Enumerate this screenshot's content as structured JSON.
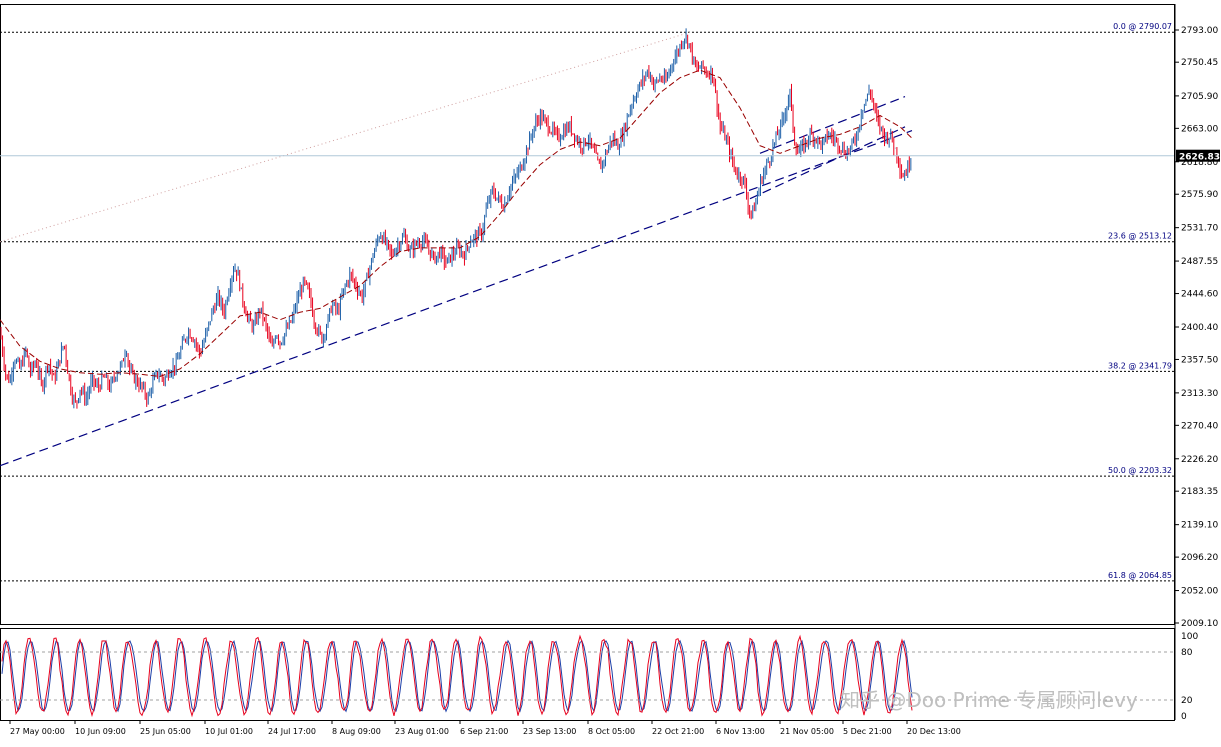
{
  "chart_data": {
    "type": "candlestick",
    "y_ticks": [
      "2793.00",
      "2750.45",
      "2705.90",
      "2663.00",
      "2618.80",
      "2575.90",
      "2531.70",
      "2487.55",
      "2444.60",
      "2400.40",
      "2357.50",
      "2313.30",
      "2270.40",
      "2226.20",
      "2183.35",
      "2139.10",
      "2096.20",
      "2052.00",
      "2009.10"
    ],
    "x_ticks": [
      "27 May 00:00",
      "10 Jun 09:00",
      "25 Jun 05:00",
      "10 Jul 01:00",
      "24 Jul 17:00",
      "8 Aug 09:00",
      "23 Aug 01:00",
      "6 Sep 21:00",
      "23 Sep 13:00",
      "8 Oct 05:00",
      "22 Oct 21:00",
      "6 Nov 13:00",
      "21 Nov 05:00",
      "5 Dec 21:00",
      "20 Dec 13:00"
    ],
    "ylim": [
      2009.1,
      2793.0
    ],
    "fibonacci": [
      {
        "label": "0.0 @ 2790.07",
        "value": 2790.07
      },
      {
        "label": "23.6 @ 2513.12",
        "value": 2513.12
      },
      {
        "label": "38.2 @ 2341.79",
        "value": 2341.79
      },
      {
        "label": "50.0 @ 2203.32",
        "value": 2203.32
      },
      {
        "label": "61.8 @ 2064.85",
        "value": 2064.85
      }
    ],
    "current_price": {
      "label": "2626.83",
      "value": 2626.83
    },
    "price_path": [
      [
        0,
        2395
      ],
      [
        6,
        2335
      ],
      [
        10,
        2330
      ],
      [
        14,
        2360
      ],
      [
        20,
        2345
      ],
      [
        26,
        2370
      ],
      [
        30,
        2340
      ],
      [
        36,
        2355
      ],
      [
        42,
        2320
      ],
      [
        48,
        2355
      ],
      [
        54,
        2330
      ],
      [
        60,
        2360
      ],
      [
        64,
        2380
      ],
      [
        68,
        2340
      ],
      [
        72,
        2310
      ],
      [
        76,
        2298
      ],
      [
        80,
        2320
      ],
      [
        86,
        2305
      ],
      [
        92,
        2330
      ],
      [
        98,
        2320
      ],
      [
        104,
        2335
      ],
      [
        110,
        2320
      ],
      [
        116,
        2340
      ],
      [
        122,
        2350
      ],
      [
        126,
        2375
      ],
      [
        130,
        2340
      ],
      [
        136,
        2330
      ],
      [
        142,
        2320
      ],
      [
        148,
        2305
      ],
      [
        152,
        2325
      ],
      [
        158,
        2340
      ],
      [
        164,
        2330
      ],
      [
        170,
        2345
      ],
      [
        176,
        2350
      ],
      [
        182,
        2375
      ],
      [
        188,
        2395
      ],
      [
        194,
        2385
      ],
      [
        200,
        2365
      ],
      [
        206,
        2390
      ],
      [
        212,
        2420
      ],
      [
        218,
        2440
      ],
      [
        224,
        2420
      ],
      [
        230,
        2460
      ],
      [
        234,
        2480
      ],
      [
        238,
        2470
      ],
      [
        242,
        2440
      ],
      [
        248,
        2410
      ],
      [
        254,
        2400
      ],
      [
        260,
        2425
      ],
      [
        264,
        2410
      ],
      [
        268,
        2390
      ],
      [
        272,
        2370
      ],
      [
        276,
        2395
      ],
      [
        280,
        2380
      ],
      [
        286,
        2395
      ],
      [
        292,
        2410
      ],
      [
        298,
        2440
      ],
      [
        304,
        2460
      ],
      [
        310,
        2440
      ],
      [
        314,
        2410
      ],
      [
        318,
        2395
      ],
      [
        322,
        2385
      ],
      [
        326,
        2400
      ],
      [
        332,
        2430
      ],
      [
        338,
        2420
      ],
      [
        344,
        2450
      ],
      [
        350,
        2470
      ],
      [
        356,
        2455
      ],
      [
        362,
        2440
      ],
      [
        368,
        2470
      ],
      [
        374,
        2500
      ],
      [
        380,
        2525
      ],
      [
        386,
        2510
      ],
      [
        392,
        2495
      ],
      [
        398,
        2510
      ],
      [
        404,
        2520
      ],
      [
        410,
        2500
      ],
      [
        416,
        2510
      ],
      [
        422,
        2515
      ],
      [
        428,
        2505
      ],
      [
        434,
        2490
      ],
      [
        440,
        2500
      ],
      [
        446,
        2485
      ],
      [
        452,
        2495
      ],
      [
        458,
        2505
      ],
      [
        464,
        2495
      ],
      [
        470,
        2515
      ],
      [
        476,
        2520
      ],
      [
        482,
        2525
      ],
      [
        486,
        2555
      ],
      [
        492,
        2580
      ],
      [
        498,
        2570
      ],
      [
        504,
        2560
      ],
      [
        510,
        2585
      ],
      [
        516,
        2600
      ],
      [
        522,
        2615
      ],
      [
        528,
        2640
      ],
      [
        534,
        2665
      ],
      [
        540,
        2680
      ],
      [
        546,
        2670
      ],
      [
        552,
        2660
      ],
      [
        558,
        2650
      ],
      [
        564,
        2660
      ],
      [
        570,
        2665
      ],
      [
        576,
        2650
      ],
      [
        582,
        2640
      ],
      [
        588,
        2650
      ],
      [
        594,
        2630
      ],
      [
        600,
        2610
      ],
      [
        606,
        2630
      ],
      [
        612,
        2650
      ],
      [
        618,
        2640
      ],
      [
        624,
        2660
      ],
      [
        630,
        2690
      ],
      [
        636,
        2710
      ],
      [
        642,
        2725
      ],
      [
        648,
        2740
      ],
      [
        654,
        2720
      ],
      [
        660,
        2730
      ],
      [
        666,
        2725
      ],
      [
        672,
        2750
      ],
      [
        678,
        2765
      ],
      [
        684,
        2785
      ],
      [
        688,
        2780
      ],
      [
        692,
        2760
      ],
      [
        696,
        2740
      ],
      [
        702,
        2745
      ],
      [
        708,
        2735
      ],
      [
        712,
        2740
      ],
      [
        716,
        2705
      ],
      [
        720,
        2665
      ],
      [
        724,
        2655
      ],
      [
        728,
        2640
      ],
      [
        732,
        2620
      ],
      [
        736,
        2605
      ],
      [
        740,
        2600
      ],
      [
        744,
        2595
      ],
      [
        748,
        2560
      ],
      [
        752,
        2550
      ],
      [
        756,
        2565
      ],
      [
        760,
        2590
      ],
      [
        764,
        2605
      ],
      [
        770,
        2625
      ],
      [
        776,
        2650
      ],
      [
        782,
        2670
      ],
      [
        786,
        2690
      ],
      [
        790,
        2710
      ],
      [
        794,
        2650
      ],
      [
        798,
        2630
      ],
      [
        804,
        2640
      ],
      [
        810,
        2655
      ],
      [
        816,
        2650
      ],
      [
        822,
        2640
      ],
      [
        828,
        2655
      ],
      [
        834,
        2650
      ],
      [
        840,
        2640
      ],
      [
        846,
        2630
      ],
      [
        852,
        2640
      ],
      [
        858,
        2660
      ],
      [
        862,
        2690
      ],
      [
        866,
        2700
      ],
      [
        870,
        2715
      ],
      [
        874,
        2690
      ],
      [
        878,
        2670
      ],
      [
        882,
        2660
      ],
      [
        886,
        2650
      ],
      [
        890,
        2655
      ],
      [
        894,
        2640
      ],
      [
        898,
        2625
      ],
      [
        902,
        2600
      ],
      [
        906,
        2605
      ],
      [
        910,
        2620
      ],
      [
        912,
        2627
      ]
    ],
    "ma_path": [
      [
        0,
        2410
      ],
      [
        20,
        2375
      ],
      [
        40,
        2355
      ],
      [
        60,
        2345
      ],
      [
        80,
        2340
      ],
      [
        100,
        2338
      ],
      [
        120,
        2340
      ],
      [
        140,
        2338
      ],
      [
        160,
        2335
      ],
      [
        180,
        2345
      ],
      [
        200,
        2365
      ],
      [
        220,
        2390
      ],
      [
        240,
        2415
      ],
      [
        260,
        2420
      ],
      [
        280,
        2410
      ],
      [
        300,
        2420
      ],
      [
        320,
        2425
      ],
      [
        340,
        2440
      ],
      [
        360,
        2455
      ],
      [
        380,
        2480
      ],
      [
        400,
        2500
      ],
      [
        420,
        2505
      ],
      [
        440,
        2505
      ],
      [
        460,
        2505
      ],
      [
        480,
        2520
      ],
      [
        500,
        2550
      ],
      [
        520,
        2585
      ],
      [
        540,
        2615
      ],
      [
        560,
        2635
      ],
      [
        580,
        2645
      ],
      [
        600,
        2640
      ],
      [
        620,
        2650
      ],
      [
        640,
        2680
      ],
      [
        660,
        2710
      ],
      [
        680,
        2730
      ],
      [
        700,
        2740
      ],
      [
        720,
        2730
      ],
      [
        740,
        2690
      ],
      [
        760,
        2640
      ],
      [
        780,
        2630
      ],
      [
        800,
        2640
      ],
      [
        820,
        2650
      ],
      [
        840,
        2655
      ],
      [
        860,
        2665
      ],
      [
        880,
        2680
      ],
      [
        900,
        2665
      ],
      [
        912,
        2650
      ]
    ],
    "trendlines": [
      {
        "from": [
          0,
          2217
        ],
        "to": [
          912,
          2660
        ]
      },
      {
        "from": [
          750,
          2570
        ],
        "to": [
          905,
          2665
        ]
      },
      {
        "from": [
          760,
          2630
        ],
        "to": [
          905,
          2705
        ]
      }
    ],
    "stochastic": {
      "levels": [
        "100",
        "80",
        "20",
        "0"
      ],
      "level_values": [
        100,
        80,
        20,
        0
      ]
    }
  },
  "watermark": "知乎 @Doo Prime 专属顾问levy",
  "colors": {
    "up": "#1c5fa8",
    "down": "#e8001c",
    "ma": "#990000",
    "fib": "#000000",
    "trend": "#000080",
    "stoch_main": "#e8001c",
    "stoch_signal": "#1c3fa8"
  }
}
